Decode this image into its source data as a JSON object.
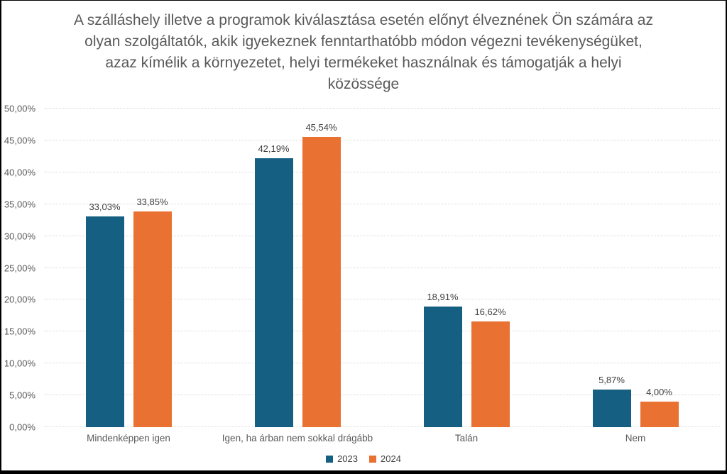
{
  "title": "A szálláshely illetve a programok kiválasztása esetén előnyt élveznének Ön számára az olyan szolgáltatók, akik igyekeznek fenntarthatóbb módon végezni tevékenységüket, azaz kímélik a környezetet, helyi termékeket használnak és támogatják a helyi közössége",
  "colors": {
    "series_2023": "#156082",
    "series_2024": "#E97132",
    "title_text": "#595959",
    "axis_text": "#595959",
    "value_label_text": "#404040",
    "gridline": "#D9D9D9",
    "background": "#FFFFFF",
    "frame_border": "#000000"
  },
  "chart_data": {
    "type": "bar",
    "title": "A szálláshely illetve a programok kiválasztása esetén előnyt élveznének Ön számára az olyan szolgáltatók, akik igyekeznek fenntarthatóbb módon végezni tevékenységüket, azaz kímélik a környezetet, helyi termékeket használnak és támogatják a helyi közössége",
    "categories": [
      "Mindenképpen igen",
      "Igen, ha árban nem sokkal drágább",
      "Talán",
      "Nem"
    ],
    "series": [
      {
        "name": "2023",
        "color": "#156082",
        "values": [
          33.03,
          42.19,
          18.91,
          5.87
        ],
        "labels": [
          "33,03%",
          "42,19%",
          "18,91%",
          "5,87%"
        ]
      },
      {
        "name": "2024",
        "color": "#E97132",
        "values": [
          33.85,
          45.54,
          16.62,
          4.0
        ],
        "labels": [
          "33,85%",
          "45,54%",
          "16,62%",
          "4,00%"
        ]
      }
    ],
    "xlabel": "",
    "ylabel": "",
    "ylim": [
      0,
      50
    ],
    "ytick_step": 5,
    "ytick_labels": [
      "0,00%",
      "5,00%",
      "10,00%",
      "15,00%",
      "20,00%",
      "25,00%",
      "30,00%",
      "35,00%",
      "40,00%",
      "45,00%",
      "50,00%"
    ],
    "grid": "horizontal-dotted",
    "legend_position": "bottom",
    "value_labels_visible": true
  },
  "legend": {
    "items": [
      {
        "label": "2023",
        "color": "#156082"
      },
      {
        "label": "2024",
        "color": "#E97132"
      }
    ]
  }
}
